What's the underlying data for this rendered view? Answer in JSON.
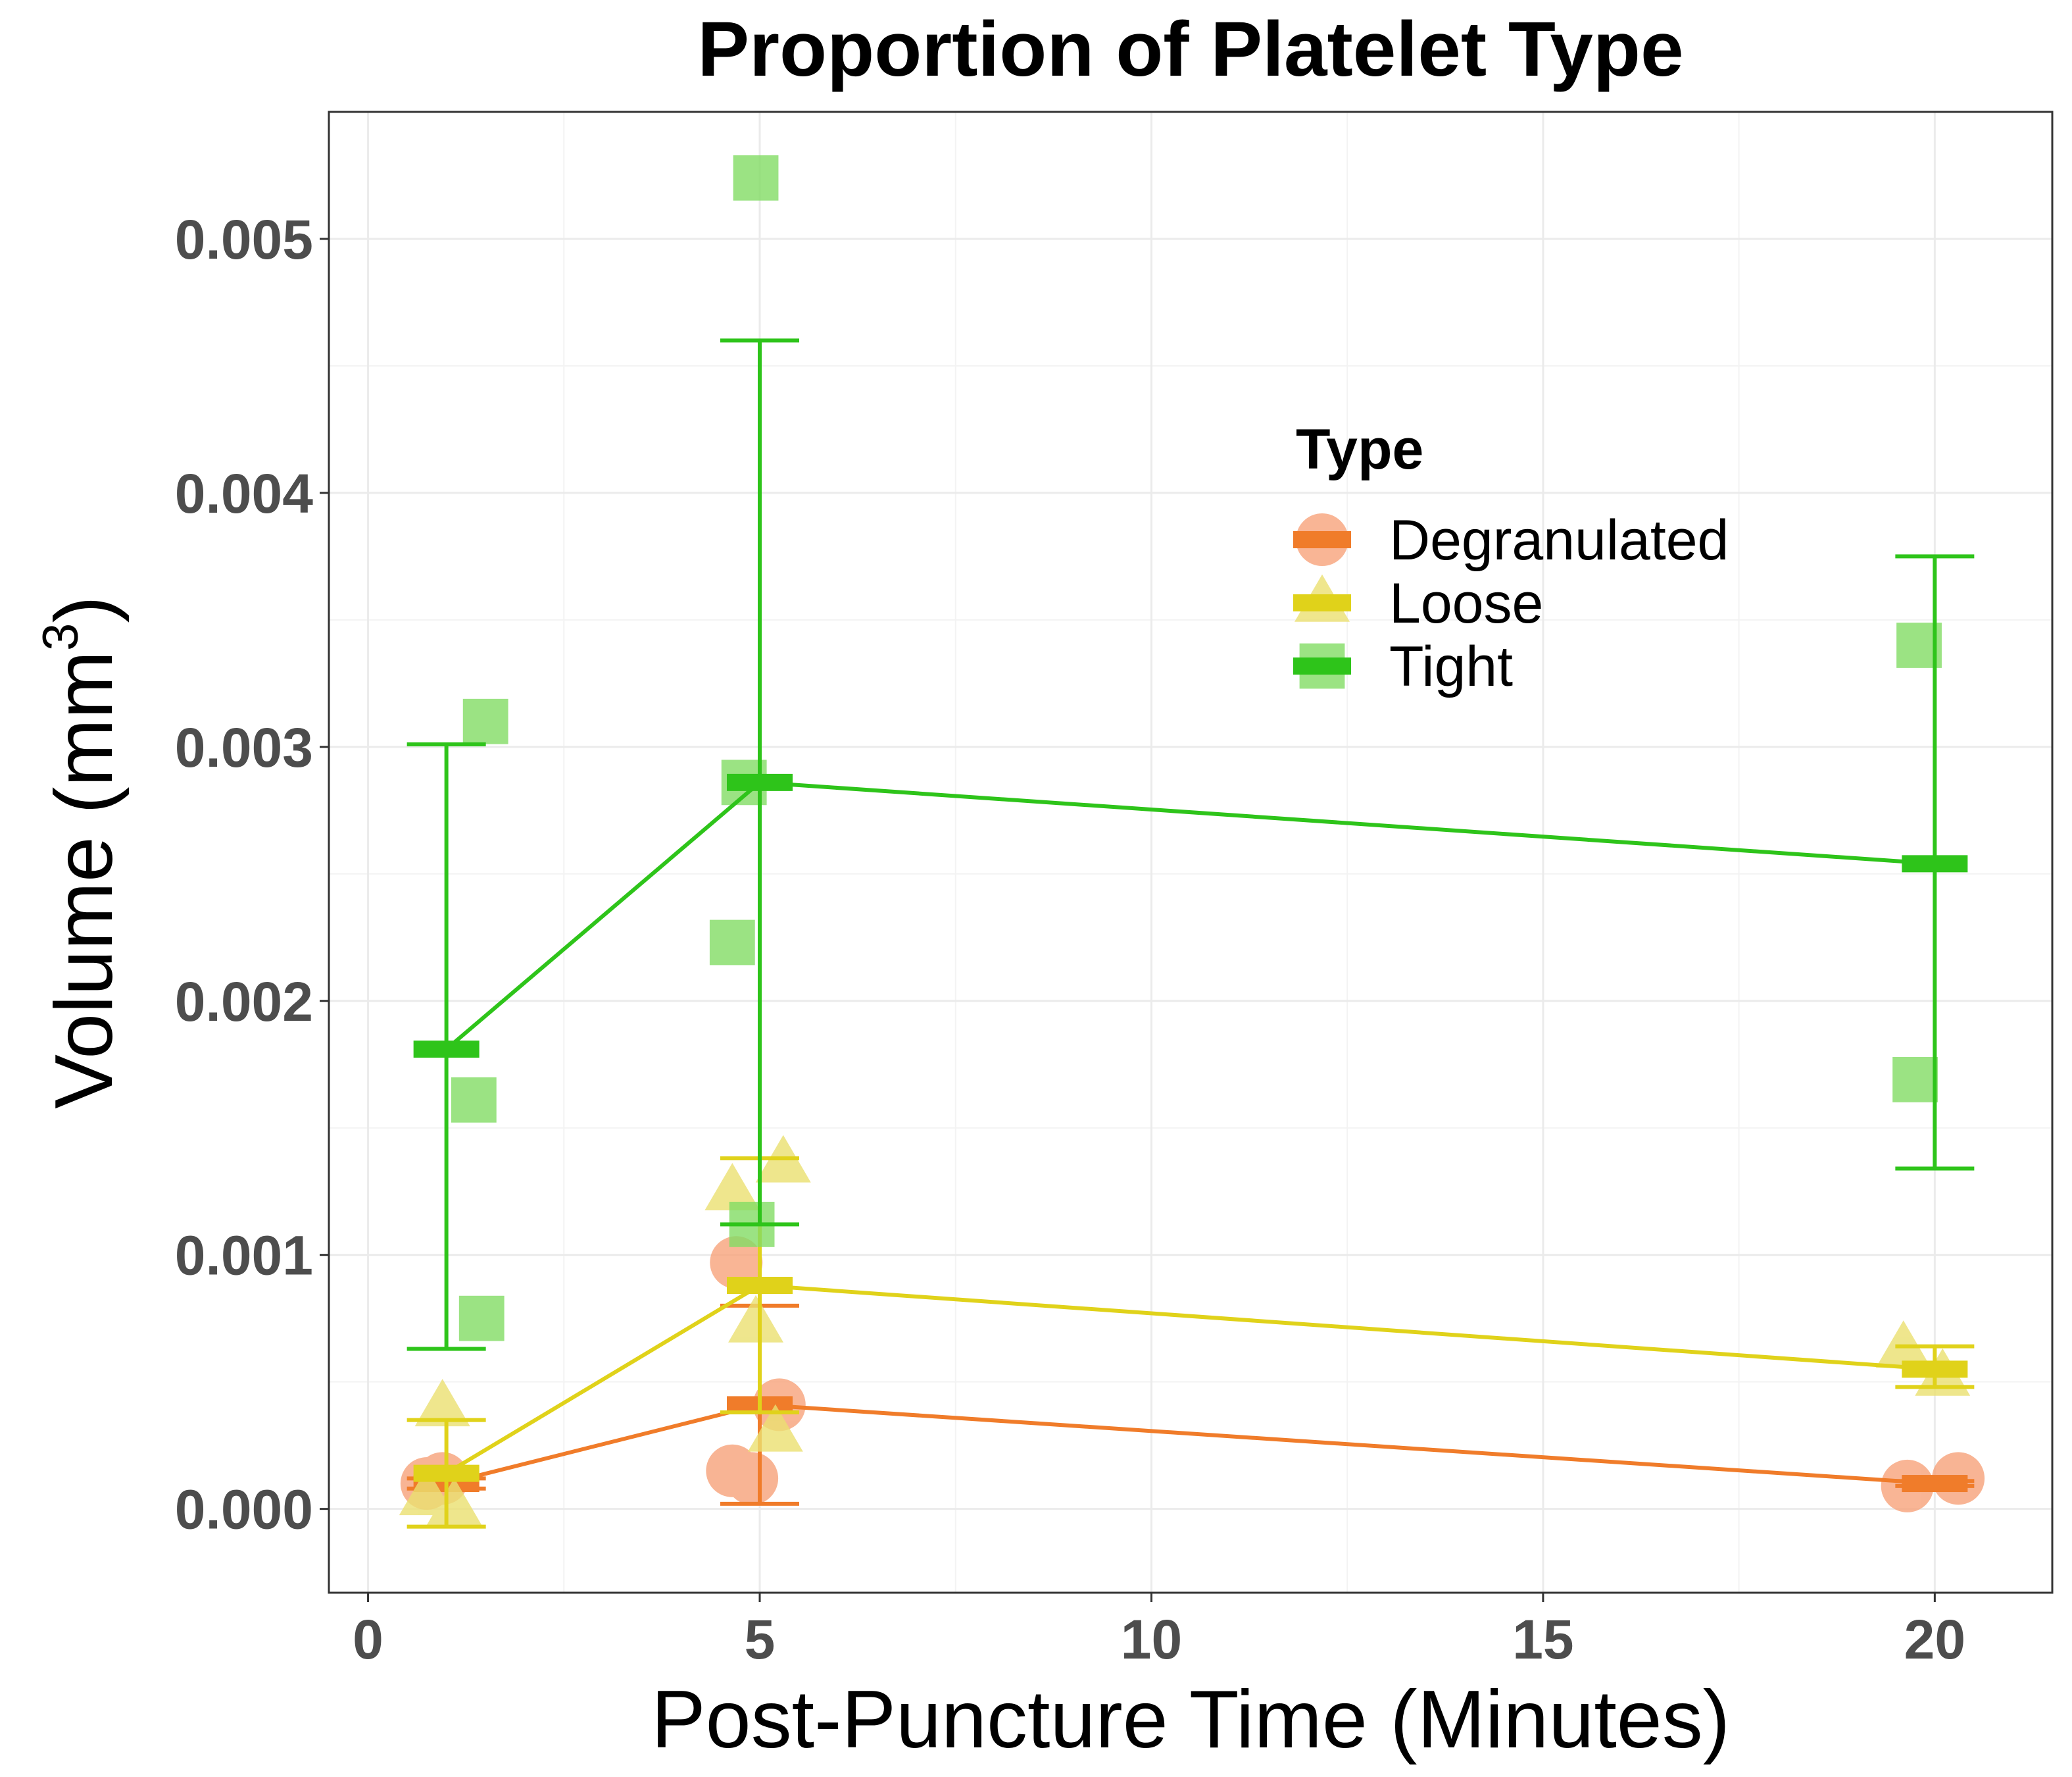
{
  "chart_data": {
    "type": "scatter",
    "title": "Proportion of Platelet Type",
    "xlabel": "Post-Puncture Time (Minutes)",
    "ylabel": "Volume (mm",
    "ylabel_superscript": "3",
    "ylabel_close": ")",
    "xlim": [
      -0.5,
      21.5
    ],
    "ylim": [
      -0.00033,
      0.0055
    ],
    "x_ticks": [
      0,
      5,
      10,
      15,
      20
    ],
    "x_tick_labels": [
      "0",
      "5",
      "10",
      "15",
      "20"
    ],
    "y_ticks": [
      0,
      0.001,
      0.002,
      0.003,
      0.004,
      0.005
    ],
    "y_tick_labels": [
      "0.000",
      "0.001",
      "0.002",
      "0.003",
      "0.004",
      "0.005"
    ],
    "grid": true,
    "legend": {
      "title": "Type",
      "placement": "top-right",
      "entries": [
        "Degranulated",
        "Loose",
        "Tight"
      ]
    },
    "series": [
      {
        "name": "Degranulated",
        "marker": "circle",
        "point_color": "#f7a27a",
        "line_color": "#f07c2a",
        "points": [
          {
            "x": 0.75,
            "y": 0.0001
          },
          {
            "x": 0.95,
            "y": 0.00012
          },
          {
            "x": 4.7,
            "y": 0.00097
          },
          {
            "x": 4.65,
            "y": 0.00015
          },
          {
            "x": 4.9,
            "y": 0.00012
          },
          {
            "x": 5.25,
            "y": 0.00041
          },
          {
            "x": 19.65,
            "y": 9e-05
          },
          {
            "x": 20.3,
            "y": 0.00012
          }
        ],
        "summary": [
          {
            "x": 1,
            "mean": 0.0001,
            "ymin": 8e-05,
            "ymax": 0.00012
          },
          {
            "x": 5,
            "mean": 0.00041,
            "ymin": 2e-05,
            "ymax": 0.0008
          },
          {
            "x": 20,
            "mean": 0.0001,
            "ymin": 9e-05,
            "ymax": 0.00011
          }
        ]
      },
      {
        "name": "Loose",
        "marker": "triangle",
        "point_color": "#ebe070",
        "line_color": "#e0d21a",
        "points": [
          {
            "x": 0.95,
            "y": 0.0004
          },
          {
            "x": 0.75,
            "y": 5e-05
          },
          {
            "x": 1.1,
            "y": 1e-05
          },
          {
            "x": 4.65,
            "y": 0.00125
          },
          {
            "x": 5.3,
            "y": 0.00136
          },
          {
            "x": 4.95,
            "y": 0.00073
          },
          {
            "x": 5.2,
            "y": 0.0003
          },
          {
            "x": 19.6,
            "y": 0.00063
          },
          {
            "x": 20.1,
            "y": 0.00052
          }
        ],
        "summary": [
          {
            "x": 1,
            "mean": 0.00014,
            "ymin": -7e-05,
            "ymax": 0.00035
          },
          {
            "x": 5,
            "mean": 0.00088,
            "ymin": 0.00038,
            "ymax": 0.00138
          },
          {
            "x": 20,
            "mean": 0.00055,
            "ymin": 0.00048,
            "ymax": 0.00064
          }
        ]
      },
      {
        "name": "Tight",
        "marker": "square",
        "point_color": "#82dc64",
        "line_color": "#2ec41a",
        "points": [
          {
            "x": 1.5,
            "y": 0.0031
          },
          {
            "x": 1.35,
            "y": 0.00161
          },
          {
            "x": 1.45,
            "y": 0.00075
          },
          {
            "x": 4.95,
            "y": 0.00524
          },
          {
            "x": 4.8,
            "y": 0.00286
          },
          {
            "x": 4.65,
            "y": 0.00223
          },
          {
            "x": 4.9,
            "y": 0.00112
          },
          {
            "x": 19.8,
            "y": 0.0034
          },
          {
            "x": 19.75,
            "y": 0.00169
          }
        ],
        "summary": [
          {
            "x": 1,
            "mean": 0.00181,
            "ymin": 0.00063,
            "ymax": 0.00301
          },
          {
            "x": 5,
            "mean": 0.00286,
            "ymin": 0.00112,
            "ymax": 0.0046
          },
          {
            "x": 20,
            "mean": 0.00254,
            "ymin": 0.00134,
            "ymax": 0.00375
          }
        ]
      }
    ]
  }
}
